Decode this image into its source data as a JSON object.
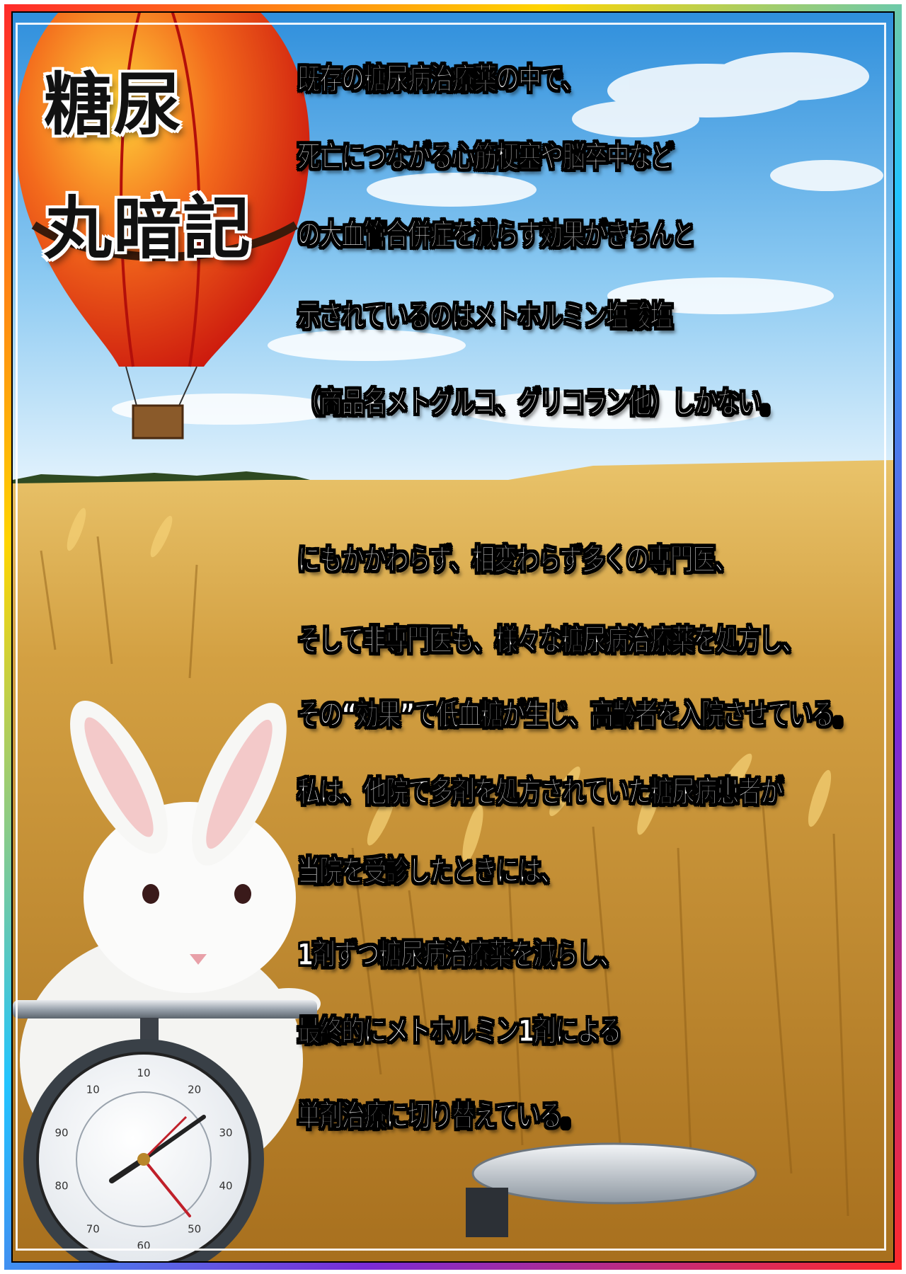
{
  "title": {
    "line1": "糖尿",
    "line2": "丸暗記"
  },
  "paragraphs": [
    [
      "既存の糖尿病治療薬の中で、",
      "死亡につながる心筋梗塞や脳卒中など",
      "の大血管合併症を減らす効果がきちんと",
      "示されているのはメトホルミン塩酸塩",
      "（商品名メトグルコ、グリコラン他）しかない。"
    ],
    [
      "にもかかわらず、相変わらず多くの専門医、",
      "そして非専門医も、様々な糖尿病治療薬を処方し、",
      "その“効果”で低血糖が生じ、高齢者を入院させている。",
      "私は、他院で多剤を処方されていた糖尿病患者が",
      "当院を受診したときには、",
      "1剤ずつ糖尿病治療薬を減らし、",
      "最終的にメトホルミン1剤による",
      "単剤治療に切り替えている。"
    ]
  ],
  "scale_dial": {
    "numbers": [
      "10",
      "20",
      "30",
      "40",
      "50",
      "60",
      "70",
      "80",
      "90",
      "10"
    ]
  },
  "colors": {
    "sky_top": "#3a9be0",
    "sky_bottom": "#d8eefb",
    "wheat": "#d9a640",
    "balloon_red": "#e8241c",
    "balloon_yellow": "#ffd23a"
  }
}
